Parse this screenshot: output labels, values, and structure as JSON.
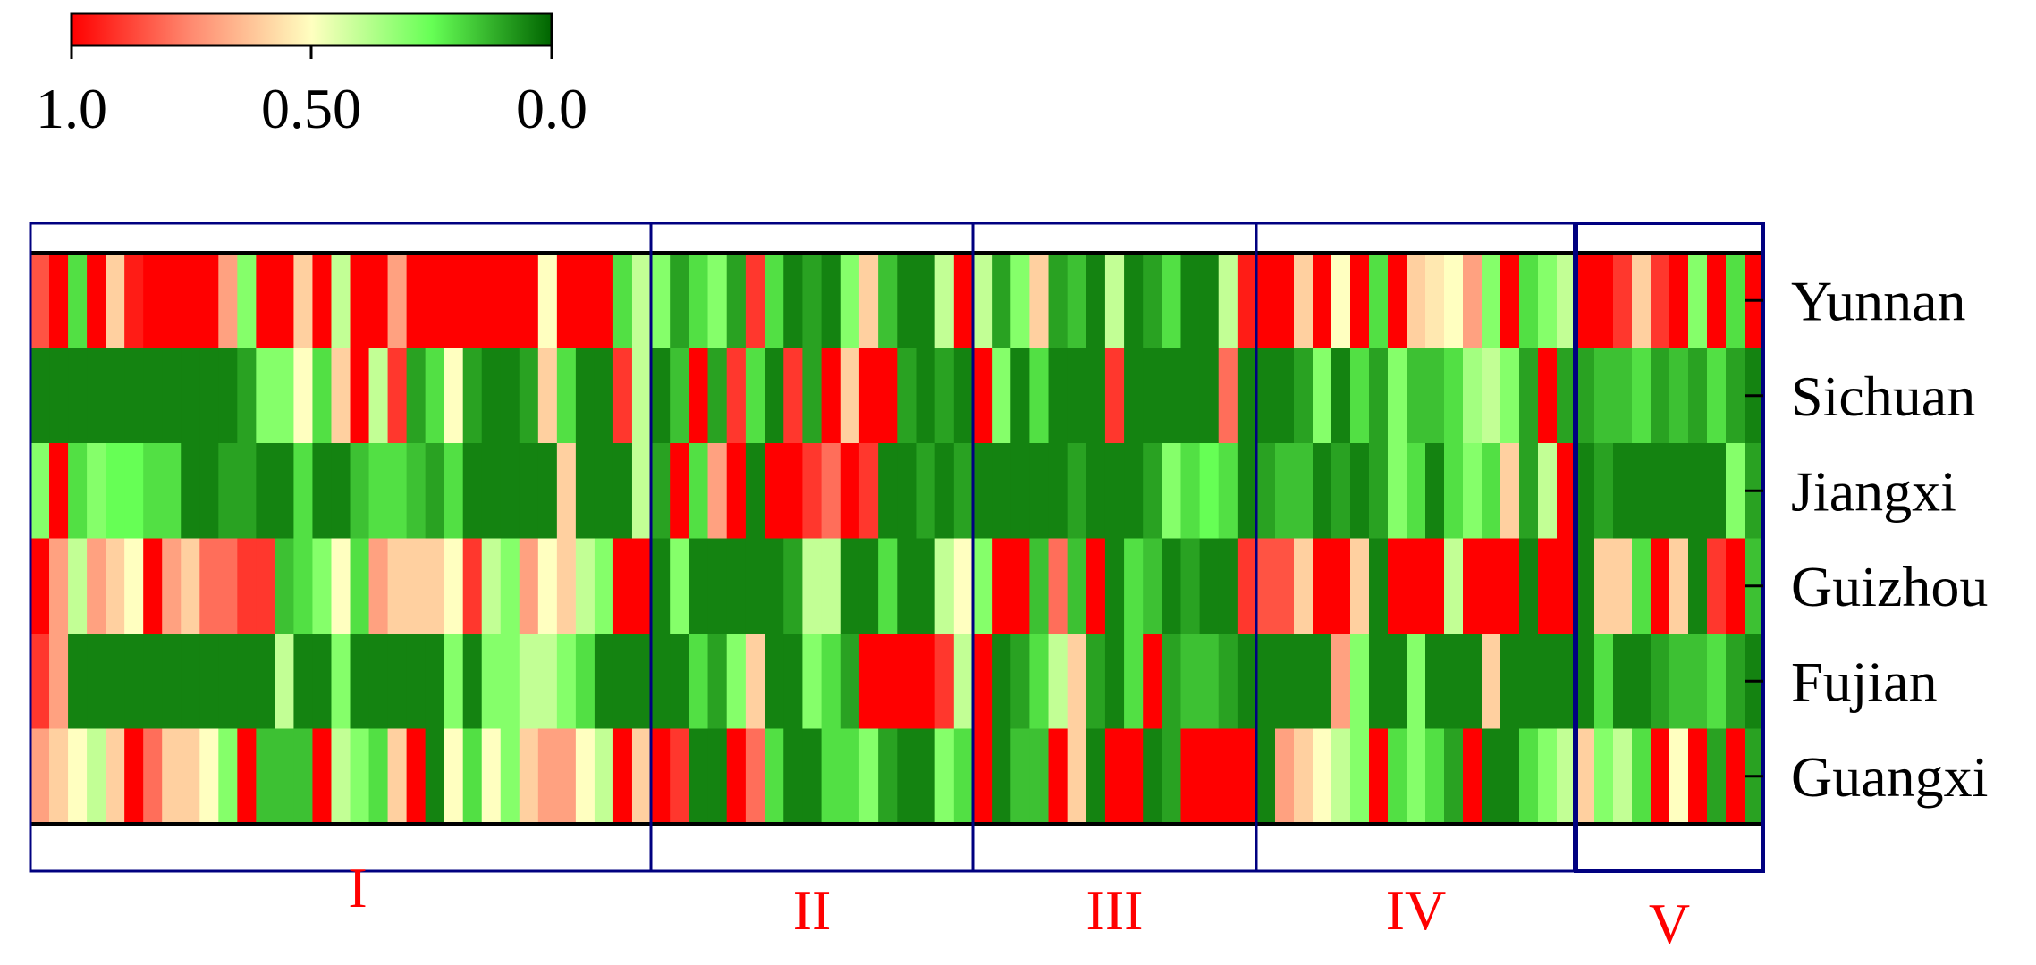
{
  "chart_data": {
    "type": "heatmap",
    "title": "",
    "xlabel": "",
    "ylabel": "",
    "colorbar": {
      "range": [
        0,
        1
      ],
      "ticks": [
        {
          "value": 1.0,
          "label": "1.0"
        },
        {
          "value": 0.5,
          "label": "0.50"
        },
        {
          "value": 0.0,
          "label": "0.0"
        }
      ],
      "colors": {
        "high": "#ff0000",
        "mid": "#ffffc0",
        "low": "#006400"
      },
      "orientation": "horizontal, 1.0 on left"
    },
    "rows": [
      "Yunnan",
      "Sichuan",
      "Jiangxi",
      "Guizhou",
      "Fujian",
      "Guangxi"
    ],
    "groups": [
      {
        "label": "I",
        "columns": 33
      },
      {
        "label": "II",
        "columns": 17
      },
      {
        "label": "III",
        "columns": 15
      },
      {
        "label": "IV",
        "columns": 17
      },
      {
        "label": "V",
        "columns": 10
      }
    ],
    "group_label_color": "#ff0000",
    "frame_color": "#000080",
    "values": [
      [
        0.85,
        1,
        0.2,
        1,
        0.6,
        0.95,
        1,
        1,
        1,
        1,
        0.7,
        0.3,
        1,
        1,
        0.6,
        1,
        0.4,
        1,
        1,
        0.7,
        1,
        1,
        1,
        1,
        1,
        1,
        1,
        0.5,
        1,
        1,
        1,
        0.2,
        0.4,
        0.3,
        0.1,
        0.2,
        0.3,
        0.1,
        0.9,
        0.2,
        0.05,
        0.1,
        0.05,
        0.3,
        0.6,
        0.15,
        0.05,
        0.05,
        0.4,
        1,
        0.4,
        0.1,
        0.3,
        0.6,
        0.1,
        0.15,
        0.05,
        0.4,
        0.05,
        0.1,
        0.2,
        0.05,
        0.05,
        0.4,
        0.95,
        1,
        1,
        0.6,
        1,
        0.5,
        1,
        0.2,
        1,
        0.6,
        0.55,
        0.5,
        0.7,
        0.3,
        1,
        0.2,
        0.3,
        0.4,
        1,
        1,
        0.9,
        0.6,
        0.9,
        1,
        0.3,
        1,
        0.2,
        1
      ],
      [
        0.05,
        0.05,
        0.05,
        0.05,
        0.05,
        0.05,
        0.05,
        0.05,
        0.05,
        0.05,
        0.05,
        0.1,
        0.3,
        0.3,
        0.5,
        0.2,
        0.6,
        1,
        0.4,
        0.9,
        0.1,
        0.2,
        0.5,
        0.1,
        0.05,
        0.05,
        0.1,
        0.6,
        0.2,
        0.05,
        0.05,
        0.9,
        0.4,
        0.05,
        0.15,
        1,
        0.1,
        0.9,
        0.2,
        0.05,
        0.9,
        0.1,
        1,
        0.6,
        1,
        1,
        0.1,
        0.05,
        0.1,
        0.05,
        1,
        0.3,
        0.05,
        0.2,
        0.05,
        0.05,
        0.05,
        0.9,
        0.05,
        0.05,
        0.05,
        0.05,
        0.05,
        0.8,
        0.05,
        0.05,
        0.05,
        0.1,
        0.3,
        0.05,
        0.2,
        0.1,
        0.3,
        0.15,
        0.15,
        0.2,
        0.35,
        0.4,
        0.3,
        0.1,
        1,
        0.1,
        0.1,
        0.15,
        0.15,
        0.2,
        0.1,
        0.15,
        0.1,
        0.2,
        0.1,
        0.05
      ],
      [
        0.3,
        1,
        0.2,
        0.3,
        0.25,
        0.25,
        0.2,
        0.2,
        0.05,
        0.05,
        0.1,
        0.1,
        0.05,
        0.05,
        0.2,
        0.05,
        0.05,
        0.15,
        0.2,
        0.2,
        0.15,
        0.1,
        0.2,
        0.05,
        0.05,
        0.05,
        0.05,
        0.05,
        0.6,
        0.05,
        0.05,
        0.05,
        0.4,
        0.1,
        1,
        0.2,
        0.7,
        1,
        0.05,
        1,
        1,
        0.9,
        0.8,
        1,
        0.9,
        0.05,
        0.05,
        0.1,
        0.05,
        0.1,
        0.05,
        0.05,
        0.05,
        0.05,
        0.05,
        0.1,
        0.05,
        0.05,
        0.05,
        0.1,
        0.3,
        0.2,
        0.25,
        0.2,
        0.05,
        0.1,
        0.15,
        0.15,
        0.05,
        0.1,
        0.05,
        0.1,
        0.3,
        0.2,
        0.05,
        0.2,
        0.3,
        0.2,
        0.6,
        0.1,
        0.4,
        1,
        0.05,
        0.1,
        0.05,
        0.05,
        0.05,
        0.05,
        0.05,
        0.05,
        0.3,
        0.1
      ],
      [
        1,
        0.7,
        0.4,
        0.7,
        0.6,
        0.5,
        1,
        0.7,
        0.6,
        0.8,
        0.8,
        0.9,
        0.9,
        0.15,
        0.2,
        0.3,
        0.5,
        0.2,
        0.7,
        0.6,
        0.6,
        0.6,
        0.5,
        0.9,
        0.4,
        0.3,
        0.7,
        0.5,
        0.6,
        0.4,
        0.3,
        1,
        1,
        0.05,
        0.3,
        0.05,
        0.05,
        0.05,
        0.05,
        0.05,
        0.1,
        0.4,
        0.4,
        0.05,
        0.05,
        0.2,
        0.05,
        0.05,
        0.4,
        0.5,
        0.3,
        1,
        1,
        0.15,
        0.8,
        0.15,
        1,
        0.05,
        0.2,
        0.15,
        0.05,
        0.1,
        0.05,
        0.05,
        0.9,
        0.85,
        0.85,
        0.6,
        1,
        1,
        0.6,
        0.05,
        1,
        1,
        1,
        0.4,
        1,
        1,
        1,
        0.05,
        1,
        1,
        0.05,
        0.6,
        0.6,
        0.2,
        1,
        0.6,
        0.05,
        0.9,
        1,
        0.15
      ],
      [
        0.9,
        0.7,
        0.05,
        0.05,
        0.05,
        0.05,
        0.05,
        0.05,
        0.05,
        0.05,
        0.05,
        0.05,
        0.05,
        0.4,
        0.05,
        0.05,
        0.3,
        0.05,
        0.05,
        0.05,
        0.05,
        0.05,
        0.3,
        0.05,
        0.3,
        0.3,
        0.4,
        0.4,
        0.3,
        0.2,
        0.05,
        0.05,
        0.05,
        0.05,
        0.05,
        0.2,
        0.1,
        0.3,
        0.6,
        0.05,
        0.05,
        0.3,
        0.2,
        0.1,
        1,
        1,
        1,
        1,
        0.9,
        0.4,
        1,
        0.05,
        0.1,
        0.2,
        0.4,
        0.6,
        0.1,
        0.05,
        0.2,
        1,
        0.1,
        0.15,
        0.15,
        0.1,
        0.05,
        0.05,
        0.05,
        0.05,
        0.05,
        0.7,
        0.3,
        0.05,
        0.05,
        0.3,
        0.05,
        0.05,
        0.05,
        0.6,
        0.05,
        0.05,
        0.05,
        0.05,
        0.05,
        0.2,
        0.05,
        0.05,
        0.1,
        0.15,
        0.15,
        0.2,
        0.1,
        0.05
      ],
      [
        0.7,
        0.6,
        0.5,
        0.4,
        0.6,
        1,
        0.8,
        0.6,
        0.6,
        0.5,
        0.3,
        1,
        0.15,
        0.15,
        0.15,
        1,
        0.4,
        0.3,
        0.2,
        0.6,
        1,
        0.05,
        0.5,
        0.2,
        0.5,
        0.3,
        0.6,
        0.7,
        0.7,
        0.5,
        0.4,
        1,
        0.6,
        1,
        0.9,
        0.05,
        0.05,
        1,
        0.8,
        0.2,
        0.05,
        0.05,
        0.2,
        0.2,
        0.3,
        0.1,
        0.05,
        0.05,
        0.3,
        0.2,
        1,
        0.05,
        0.15,
        0.15,
        1,
        0.6,
        0.05,
        1,
        1,
        0.05,
        0.1,
        1,
        1,
        1,
        1,
        0.05,
        0.7,
        0.6,
        0.5,
        0.4,
        0.3,
        1,
        0.2,
        0.3,
        0.2,
        0.1,
        1,
        0.05,
        0.05,
        0.2,
        0.3,
        0.4,
        0.6,
        0.3,
        0.4,
        0.2,
        1,
        0.5,
        1,
        0.1,
        1,
        0.1
      ]
    ]
  }
}
